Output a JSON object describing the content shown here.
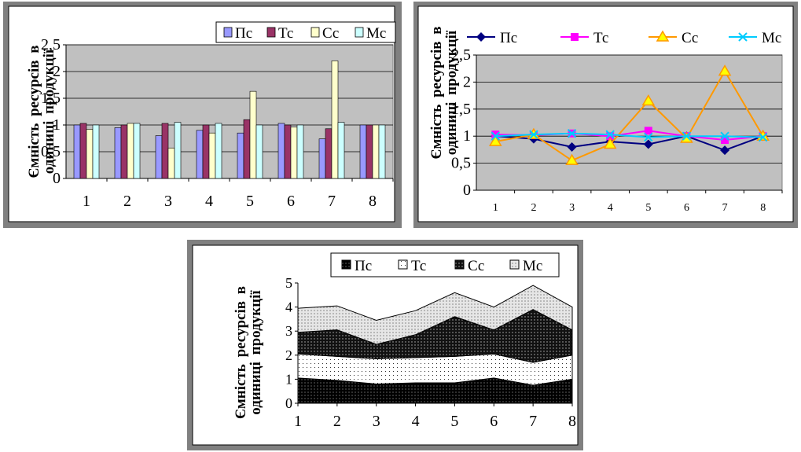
{
  "chart_data": [
    {
      "type": "bar",
      "categories": [
        "1",
        "2",
        "3",
        "4",
        "5",
        "6",
        "7",
        "8"
      ],
      "ylabel_lines": [
        "Ємність ресурсів в",
        "одиниці продукції"
      ],
      "yticks": [
        "0",
        "0,5",
        "1",
        "1,5",
        "2",
        "2,5"
      ],
      "ylim": [
        0,
        2.5
      ],
      "legend_position": "top-right",
      "series": [
        {
          "name": "Пс",
          "color": "#9999ff",
          "values": [
            1.0,
            0.95,
            0.8,
            0.9,
            0.85,
            1.03,
            0.74,
            1.0
          ]
        },
        {
          "name": "Тс",
          "color": "#993366",
          "values": [
            1.03,
            1.0,
            1.03,
            1.0,
            1.1,
            1.0,
            0.93,
            1.0
          ]
        },
        {
          "name": "Сс",
          "color": "#ffffcc",
          "values": [
            0.92,
            1.03,
            0.57,
            0.85,
            1.63,
            0.96,
            2.2,
            1.0
          ]
        },
        {
          "name": "Мс",
          "color": "#ccffff",
          "values": [
            1.0,
            1.03,
            1.05,
            1.03,
            1.0,
            1.0,
            1.05,
            1.0
          ]
        }
      ]
    },
    {
      "type": "line",
      "categories": [
        "1",
        "2",
        "3",
        "4",
        "5",
        "6",
        "7",
        "8"
      ],
      "ylabel_lines": [
        "Ємність ресурсів в",
        "одиниці продукції"
      ],
      "yticks": [
        "0",
        "0,5",
        "1",
        "1,5",
        "2",
        "2,5"
      ],
      "ylim": [
        0,
        2.5
      ],
      "legend_position": "top",
      "series": [
        {
          "name": "Пс",
          "color": "#000080",
          "marker": "diamond",
          "values": [
            1.0,
            0.95,
            0.8,
            0.9,
            0.85,
            1.0,
            0.74,
            1.0
          ]
        },
        {
          "name": "Тс",
          "color": "#ff00ff",
          "marker": "square",
          "values": [
            1.03,
            1.02,
            1.05,
            1.0,
            1.1,
            1.0,
            0.93,
            1.0
          ]
        },
        {
          "name": "Сс",
          "color": "#ff9900",
          "marker": "triangle",
          "values": [
            0.9,
            1.03,
            0.55,
            0.85,
            1.65,
            0.96,
            2.2,
            1.0
          ]
        },
        {
          "name": "Мс",
          "color": "#00ccff",
          "marker": "x",
          "values": [
            1.0,
            1.03,
            1.05,
            1.03,
            0.98,
            1.0,
            1.0,
            0.98
          ]
        }
      ]
    },
    {
      "type": "area",
      "stacked": true,
      "categories": [
        "1",
        "2",
        "3",
        "4",
        "5",
        "6",
        "7",
        "8"
      ],
      "ylabel_lines": [
        "Ємність ресурсів в",
        "одиниці продукції"
      ],
      "yticks": [
        "0",
        "1",
        "2",
        "3",
        "4",
        "5"
      ],
      "ylim": [
        0,
        5
      ],
      "legend_position": "top",
      "series": [
        {
          "name": "Пс",
          "pattern": "dense-black",
          "values": [
            1.05,
            0.95,
            0.8,
            0.85,
            0.85,
            1.05,
            0.75,
            1.0
          ]
        },
        {
          "name": "Тс",
          "pattern": "light-dots",
          "values": [
            1.0,
            1.0,
            1.05,
            1.05,
            1.1,
            1.0,
            0.95,
            1.0
          ]
        },
        {
          "name": "Сс",
          "pattern": "dark-dots",
          "values": [
            0.9,
            1.1,
            0.6,
            0.95,
            1.65,
            1.0,
            2.2,
            1.05
          ]
        },
        {
          "name": "Мс",
          "pattern": "medium-dots",
          "values": [
            1.0,
            1.0,
            1.0,
            1.0,
            1.0,
            0.95,
            1.0,
            0.95
          ]
        }
      ]
    }
  ]
}
